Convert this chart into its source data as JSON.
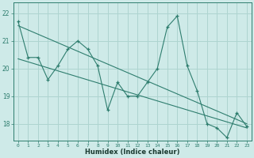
{
  "line1_x": [
    0,
    1,
    2,
    3,
    4,
    5,
    6,
    7,
    8,
    9,
    10,
    11,
    12,
    13,
    14,
    15,
    16,
    17,
    18,
    19,
    20,
    21,
    22,
    23
  ],
  "line1_y": [
    21.7,
    20.4,
    20.4,
    19.6,
    20.1,
    20.7,
    21.0,
    20.7,
    20.1,
    18.5,
    19.5,
    19.0,
    19.0,
    19.5,
    20.0,
    21.5,
    21.9,
    20.1,
    19.2,
    18.0,
    17.85,
    17.5,
    18.4,
    17.9
  ],
  "line2_x": [
    0,
    23
  ],
  "line2_y": [
    21.55,
    18.0
  ],
  "line3_x": [
    0,
    23
  ],
  "line3_y": [
    20.35,
    17.85
  ],
  "line_color": "#2e7d6e",
  "bg_color": "#ceeae8",
  "grid_color": "#aed4d0",
  "xlabel": "Humidex (Indice chaleur)",
  "yticks": [
    18,
    19,
    20,
    21,
    22
  ],
  "xticks": [
    0,
    1,
    2,
    3,
    4,
    5,
    6,
    7,
    8,
    9,
    10,
    11,
    12,
    13,
    14,
    15,
    16,
    17,
    18,
    19,
    20,
    21,
    22,
    23
  ],
  "xlim": [
    -0.5,
    23.5
  ],
  "ylim": [
    17.4,
    22.4
  ]
}
